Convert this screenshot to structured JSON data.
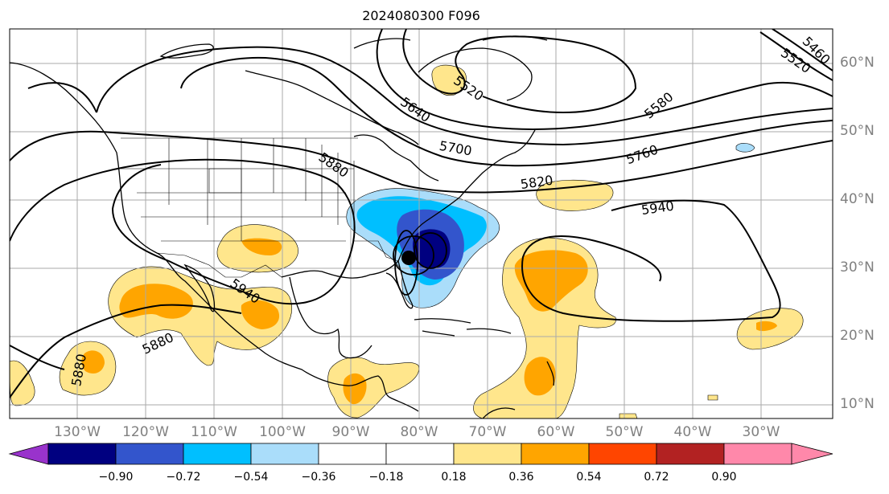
{
  "title": "2024080300 F096",
  "lat_labels": [
    "60°N",
    "50°N",
    "40°N",
    "30°N",
    "20°N",
    "10°N"
  ],
  "lon_labels": [
    "130°W",
    "120°W",
    "110°W",
    "100°W",
    "90°W",
    "80°W",
    "70°W",
    "60°W",
    "50°W",
    "40°W",
    "30°W"
  ],
  "contour_labels": [
    "5460",
    "5520",
    "5520",
    "5580",
    "5640",
    "5700",
    "5760",
    "5820",
    "5880",
    "5940",
    "5940",
    "5880",
    "5880"
  ],
  "colorbar": {
    "tick_labels": [
      "−0.90",
      "−0.72",
      "−0.54",
      "−0.36",
      "−0.18",
      "0.18",
      "0.36",
      "0.54",
      "0.72",
      "0.90"
    ],
    "colors": [
      "#9933cc",
      "#000080",
      "#3355cc",
      "#00bfff",
      "#aaddfa",
      "#ffffff",
      "#ffe68c",
      "#ffa500",
      "#ff4500",
      "#b22222",
      "#ff88aa"
    ]
  },
  "colors": {
    "neg_strong": "#000080",
    "neg_mid": "#3355cc",
    "neg_light": "#00bfff",
    "neg_pale": "#aaddfa",
    "pos_pale": "#ffe68c",
    "pos_mid": "#ffa500"
  },
  "icons": [
    "storm-center-dot"
  ]
}
